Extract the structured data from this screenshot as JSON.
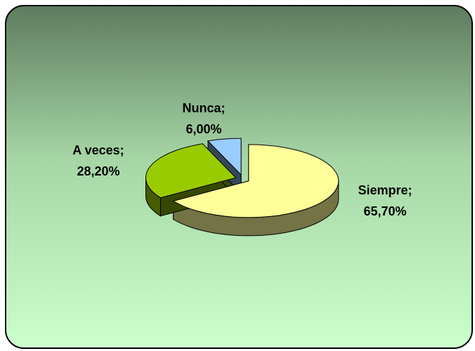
{
  "chart_data": {
    "type": "pie3d",
    "categories": [
      "Siempre;",
      "A veces;",
      "Nunca;"
    ],
    "values": [
      65.7,
      28.2,
      6.0
    ],
    "value_labels": [
      "65,70%",
      "28,20%",
      "6,00%"
    ],
    "colors": [
      "#ffff99",
      "#99cc00",
      "#99ccff"
    ]
  }
}
